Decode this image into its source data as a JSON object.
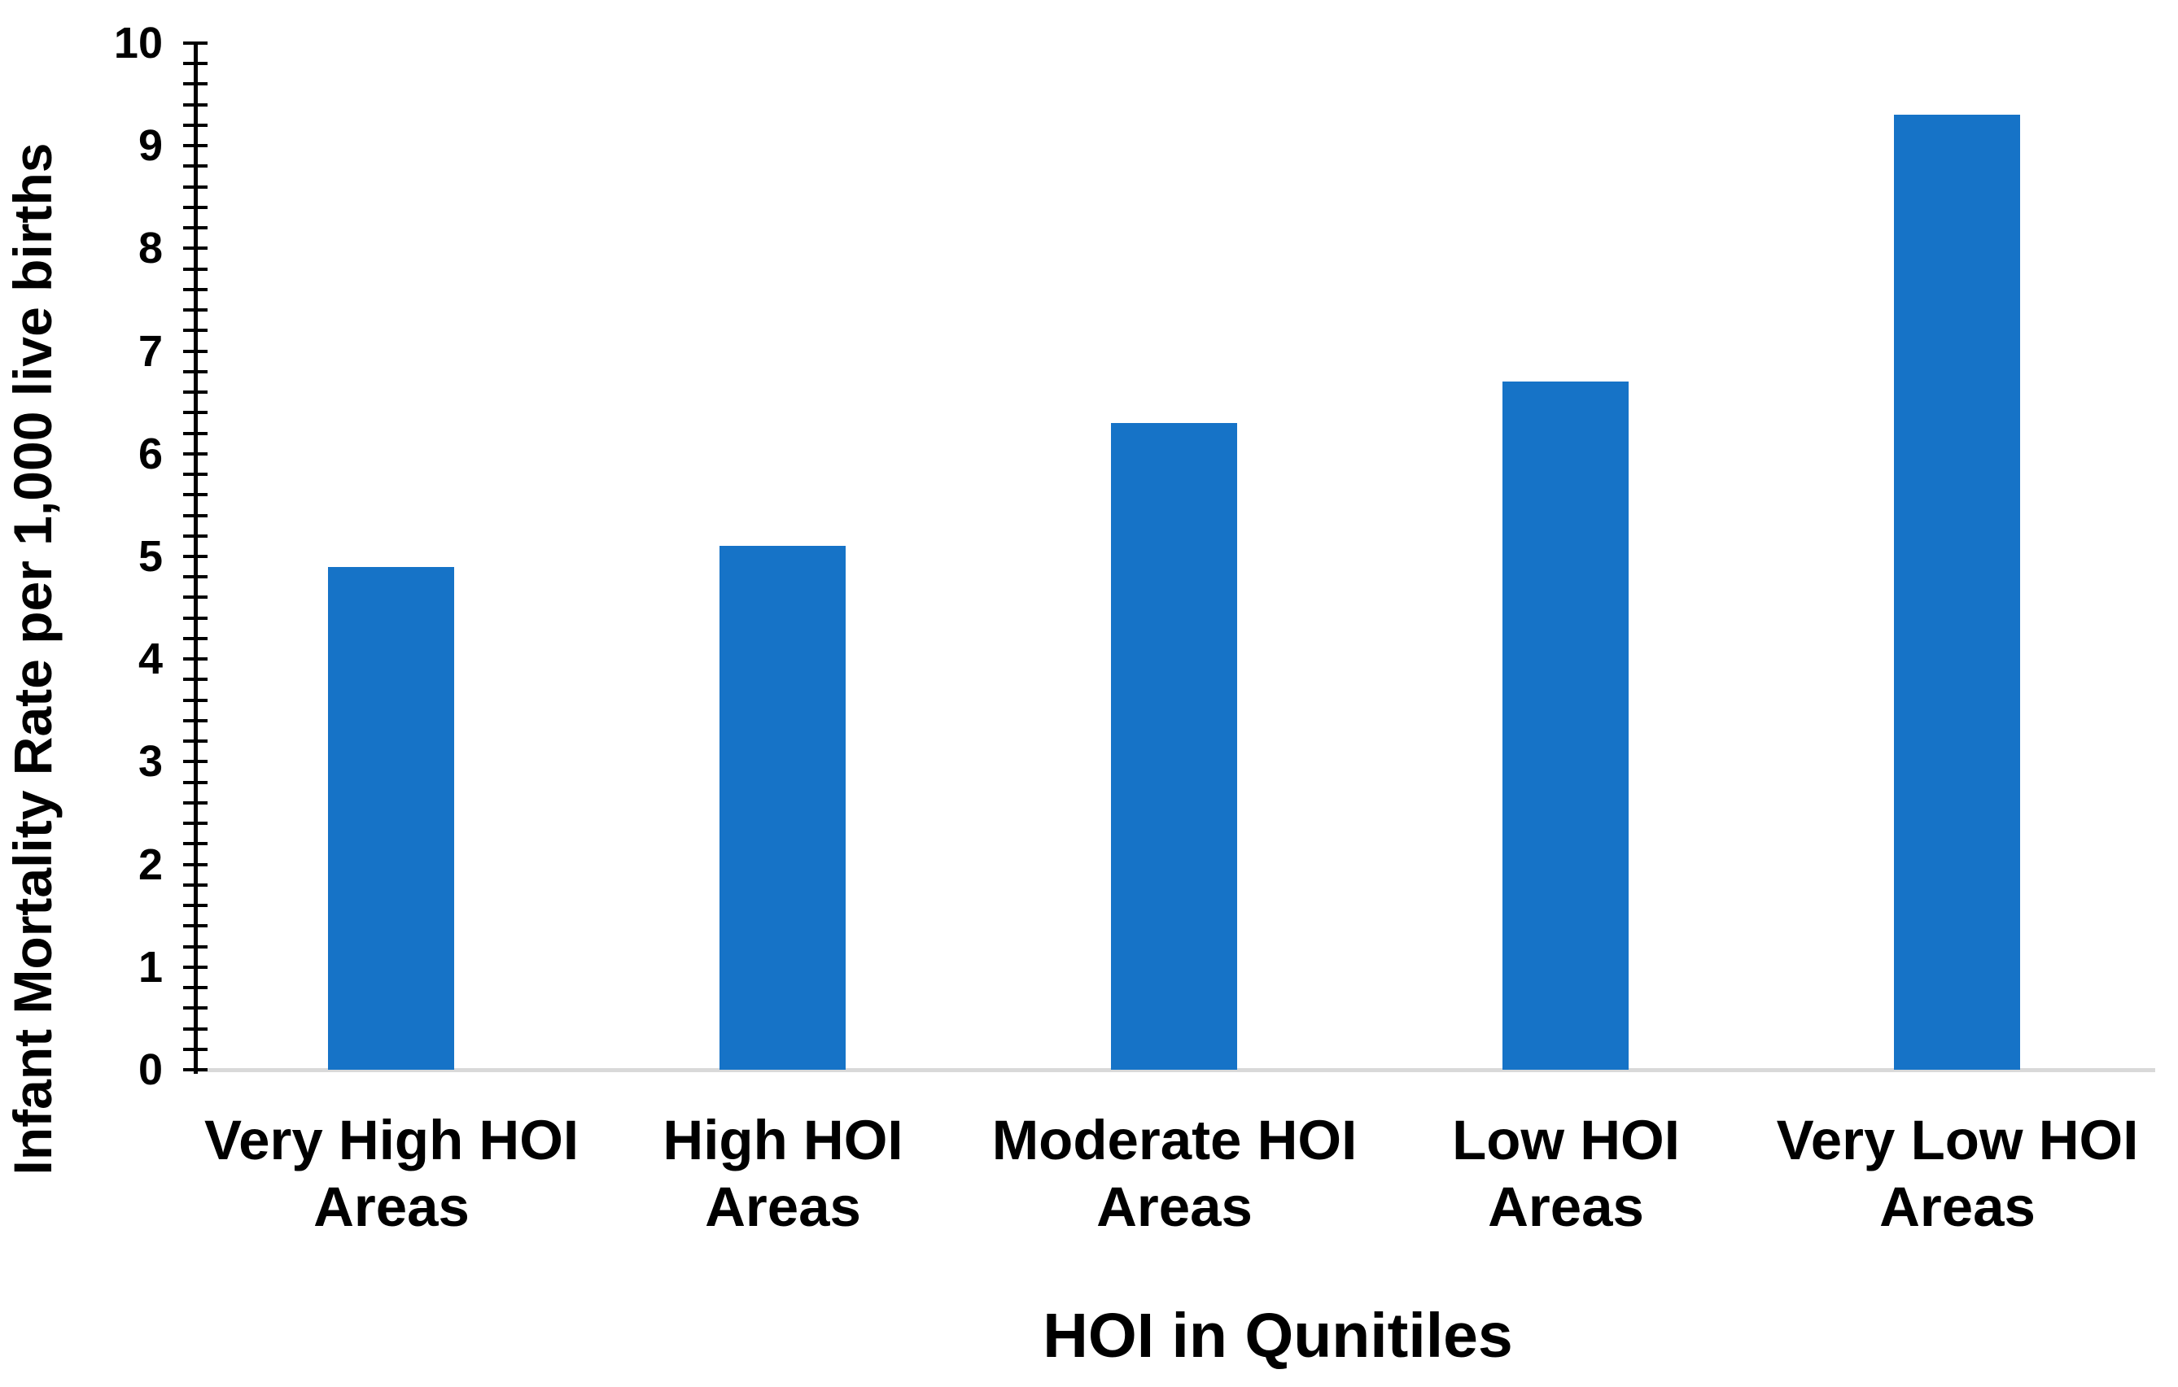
{
  "chart_data": {
    "type": "bar",
    "title": "",
    "xlabel": "HOI in Qunitiles",
    "ylabel": "Infant Mortality Rate per 1,000 live births",
    "categories": [
      "Very High HOI\nAreas",
      "High HOI\nAreas",
      "Moderate HOI\nAreas",
      "Low HOI\nAreas",
      "Very Low HOI\nAreas"
    ],
    "values": [
      4.9,
      5.1,
      6.3,
      6.7,
      9.3
    ],
    "ylim": [
      0,
      10
    ],
    "y_major_tick_step": 1,
    "y_minor_tick_step": 0.2,
    "y_tick_labels": [
      "0",
      "1",
      "2",
      "3",
      "4",
      "5",
      "6",
      "7",
      "8",
      "9",
      "10"
    ],
    "legend": null,
    "grid": false,
    "colors": {
      "bar": "#1673C7",
      "baseline": "#D9D9D9",
      "axis": "#000000",
      "text": "#000000",
      "background": "#FFFFFF"
    }
  }
}
